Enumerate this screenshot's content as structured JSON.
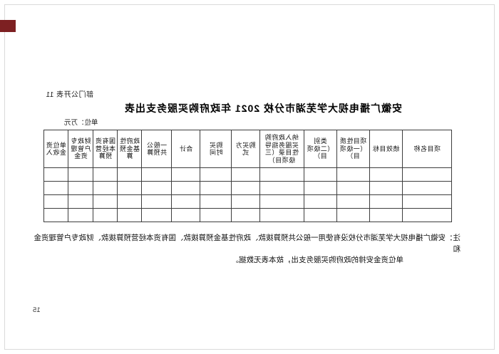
{
  "page": {
    "doc_label": "部门公开表 11",
    "title": "安徽广播电视大学芜湖市分校 2021 年政府购买服务支出表",
    "unit_label": "单位：万元",
    "page_number": "15",
    "note_line1": "注：安徽广播电视大学芜湖市分校没有使用一般公共预算拨款、政府性基金预算拨款、国有资本经营预算拨款、财政专户管理资金和",
    "note_line2": "单位资金安排的政府购买服务支出，故本表无数据。",
    "accent_color": "#7d2022",
    "grid_color": "#3d3d3d",
    "mirrored": "true"
  },
  "table": {
    "row_count": 4,
    "columns": [
      {
        "label": "项目名称",
        "width": 69
      },
      {
        "label": "绩效目标",
        "width": 46
      },
      {
        "label": "项目性质\n（一级项\n目）",
        "width": 46
      },
      {
        "label": "类别\n（二级项\n目）",
        "width": 46
      },
      {
        "label": "纳入政府购\n买服务指导\n性目录（三\n级项目）",
        "width": 62
      },
      {
        "label": "购买方式",
        "width": 39
      },
      {
        "label": "购买\n时间",
        "width": 44
      },
      {
        "label": "合计",
        "width": 40
      },
      {
        "label": "一般公\n共预算",
        "width": 42
      },
      {
        "label": "政府性\n基金预\n算",
        "width": 34
      },
      {
        "label": "国有资\n本经营\n预算",
        "width": 34
      },
      {
        "label": "财政专\n户管理\n资金",
        "width": 35
      },
      {
        "label": "单位资\n金收入",
        "width": 34
      }
    ]
  }
}
